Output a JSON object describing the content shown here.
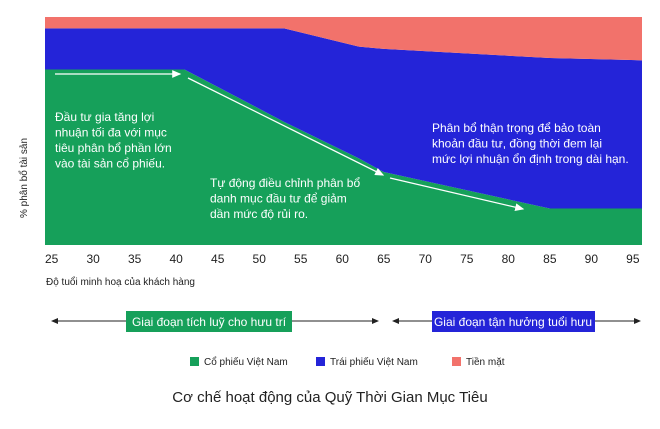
{
  "chart_data": {
    "type": "stacked-area",
    "title": "Cơ chế hoạt động của Quỹ Thời Gian Mục Tiêu",
    "x_label": "Độ tuổi minh hoạ của khách hàng",
    "y_label": "% phân bổ tài sản",
    "x": [
      24.2,
      41,
      53,
      62,
      65,
      85,
      96.1
    ],
    "series": [
      {
        "name": "Cổ phiếu Việt Nam",
        "color": "#16a05a",
        "values": [
          77,
          77,
          54,
          38,
          32,
          16,
          16
        ]
      },
      {
        "name": "Trái phiếu Việt Nam",
        "color": "#2424d8",
        "values": [
          18,
          18,
          41,
          49,
          54,
          66,
          65
        ]
      },
      {
        "name": "Tiền mặt",
        "color": "#f2726b",
        "values": [
          5,
          5,
          5,
          13,
          14,
          18,
          19
        ]
      }
    ],
    "xlim": [
      24.2,
      96.1
    ],
    "ylim": [
      0,
      100
    ],
    "xticks": [
      25,
      30,
      35,
      40,
      45,
      50,
      55,
      60,
      65,
      70,
      75,
      80,
      85,
      90,
      95
    ],
    "annotations": [
      [
        "Đầu tư gia tăng lợi",
        "nhuận tối đa với mục",
        "tiêu phân bổ phần lớn",
        "vào tài sản cổ phiếu."
      ],
      [
        "Tự động điều chỉnh phân bổ",
        "danh mục đầu tư để giảm",
        "dần mức độ rủi ro."
      ],
      [
        "Phân bổ thận trọng để bảo toàn",
        "khoản đầu tư, đồng thời đem lại",
        "mức lợi nhuận ổn định trong dài hạn."
      ]
    ],
    "phases": [
      "Giai đoạn tích luỹ cho hưu trí",
      "Giai đoạn tận hưởng tuổi hưu"
    ]
  }
}
